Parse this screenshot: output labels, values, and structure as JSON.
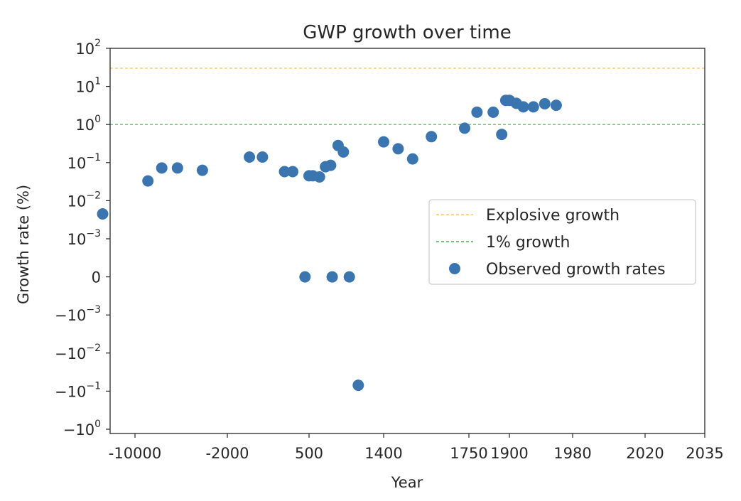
{
  "chart_data": {
    "type": "scatter",
    "title": "GWP growth over time",
    "xlabel": "Year",
    "ylabel": "Growth rate (%)",
    "x_scale": "categorical-nonlinear",
    "y_scale": "symlog",
    "x_ticks": [
      "-10000",
      "-2000",
      "500",
      "1400",
      "1750",
      "1900",
      "1980",
      "2020",
      "2035"
    ],
    "y_ticks": [
      {
        "value": 100,
        "base": "10",
        "exp": "2"
      },
      {
        "value": 10,
        "base": "10",
        "exp": "1"
      },
      {
        "value": 1,
        "base": "10",
        "exp": "0"
      },
      {
        "value": 0.1,
        "base": "10",
        "exp": "−1"
      },
      {
        "value": 0.01,
        "base": "10",
        "exp": "−2"
      },
      {
        "value": 0.001,
        "base": "10",
        "exp": "−3"
      },
      {
        "value": 0,
        "base": "0",
        "exp": ""
      },
      {
        "value": -0.001,
        "base": "−10",
        "exp": "−3"
      },
      {
        "value": -0.01,
        "base": "−10",
        "exp": "−2"
      },
      {
        "value": -0.1,
        "base": "−10",
        "exp": "−1"
      },
      {
        "value": -1,
        "base": "−10",
        "exp": "0"
      }
    ],
    "reference_lines": [
      {
        "name": "Explosive growth",
        "value": 30,
        "color": "#ffbf5a",
        "style": "dashed"
      },
      {
        "name": "1% growth",
        "value": 1,
        "color": "#4caf50",
        "style": "dashed"
      }
    ],
    "series": [
      {
        "name": "Observed growth rates",
        "color": "#3a75b0",
        "points": [
          {
            "x": -0.35,
            "y": 0.0045
          },
          {
            "x": 0.14,
            "y": 0.033
          },
          {
            "x": 0.29,
            "y": 0.072
          },
          {
            "x": 0.46,
            "y": 0.072
          },
          {
            "x": 0.73,
            "y": 0.063
          },
          {
            "x": 1.27,
            "y": 0.14
          },
          {
            "x": 1.43,
            "y": 0.14
          },
          {
            "x": 1.7,
            "y": 0.058
          },
          {
            "x": 1.8,
            "y": 0.058
          },
          {
            "x": 2.0,
            "y": 0.045
          },
          {
            "x": 2.05,
            "y": 0.045
          },
          {
            "x": 2.14,
            "y": 0.042
          },
          {
            "x": 2.22,
            "y": 0.078
          },
          {
            "x": 2.29,
            "y": 0.085
          },
          {
            "x": 2.39,
            "y": 0.28
          },
          {
            "x": 2.46,
            "y": 0.19
          },
          {
            "x": 2.54,
            "y": 0.0
          },
          {
            "x": 3.0,
            "y": 0.35
          },
          {
            "x": 3.17,
            "y": 0.23
          },
          {
            "x": 3.34,
            "y": 0.125
          },
          {
            "x": 3.56,
            "y": 0.48
          },
          {
            "x": 3.95,
            "y": 0.8
          },
          {
            "x": 4.2,
            "y": 2.1
          },
          {
            "x": 4.6,
            "y": 2.1
          },
          {
            "x": 4.81,
            "y": 0.55
          },
          {
            "x": 4.91,
            "y": 4.3
          },
          {
            "x": 5.0,
            "y": 4.3
          },
          {
            "x": 5.11,
            "y": 3.6
          },
          {
            "x": 5.22,
            "y": 2.9
          },
          {
            "x": 5.38,
            "y": 2.9
          },
          {
            "x": 5.56,
            "y": 3.5
          },
          {
            "x": 5.74,
            "y": 3.2
          },
          {
            "x": 1.95,
            "y": 0.0
          },
          {
            "x": 2.31,
            "y": 0.0
          },
          {
            "x": 2.66,
            "y": -0.07
          }
        ]
      }
    ],
    "legend": {
      "position": "center-right",
      "entries": [
        "Explosive growth",
        "1% growth",
        "Observed growth rates"
      ]
    }
  }
}
